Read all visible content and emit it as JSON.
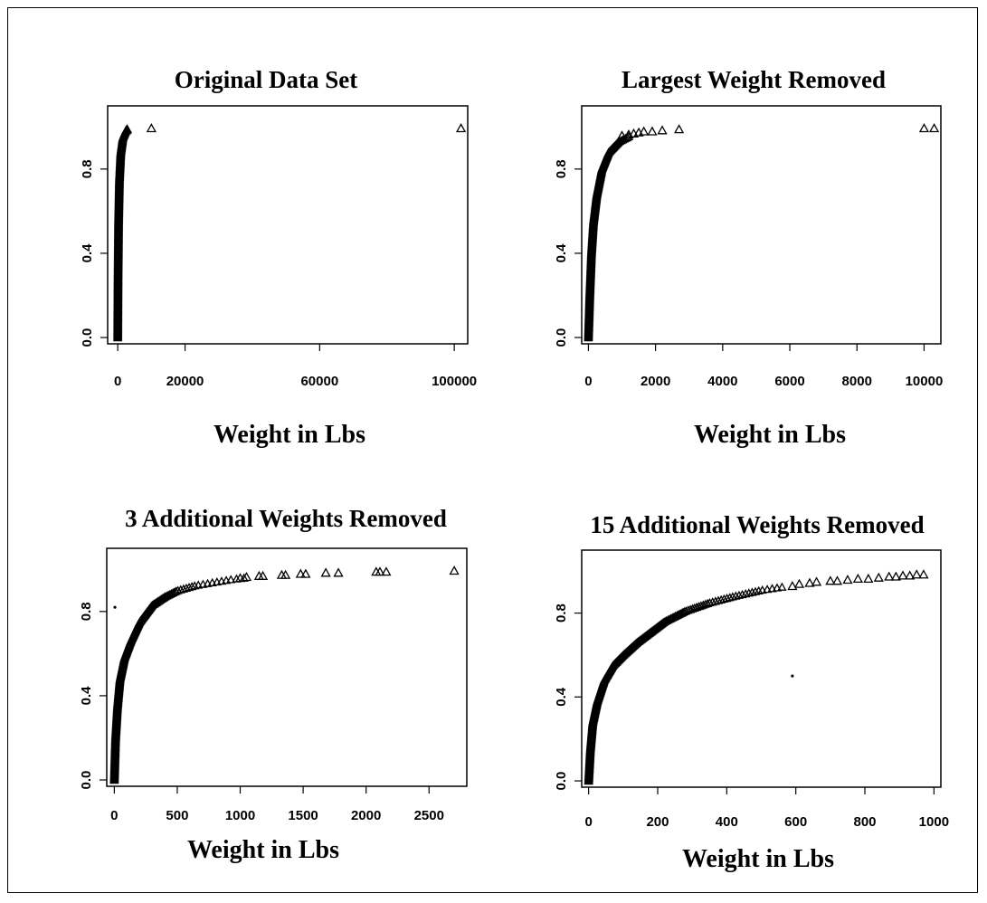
{
  "chart_data": [
    {
      "type": "scatter",
      "title": "Original Data Set",
      "xlabel": "Weight in Lbs",
      "ylabel": "",
      "xlim": [
        -3000,
        104000
      ],
      "ylim": [
        -0.03,
        1.1
      ],
      "xticks": [
        0,
        20000,
        60000,
        100000
      ],
      "xtick_labels": [
        "0",
        "20000",
        "60000",
        "100000"
      ],
      "yticks": [
        0.0,
        0.4,
        0.8
      ],
      "ytick_labels": [
        "0.0",
        "0.4",
        "0.8"
      ],
      "curve": [
        [
          0,
          0.0
        ],
        [
          100,
          0.3
        ],
        [
          250,
          0.55
        ],
        [
          500,
          0.75
        ],
        [
          900,
          0.88
        ],
        [
          1500,
          0.95
        ],
        [
          2300,
          0.98
        ],
        [
          2800,
          0.99
        ]
      ],
      "points": [
        [
          2500,
          0.985
        ],
        [
          2800,
          0.99
        ],
        [
          10000,
          0.995
        ],
        [
          102000,
          0.995
        ]
      ],
      "stray_points": []
    },
    {
      "type": "scatter",
      "title": "Largest Weight Removed",
      "xlabel": "Weight in Lbs",
      "ylabel": "",
      "xlim": [
        -200,
        10500
      ],
      "ylim": [
        -0.03,
        1.1
      ],
      "xticks": [
        0,
        2000,
        4000,
        6000,
        8000,
        10000
      ],
      "xtick_labels": [
        "0",
        "2000",
        "4000",
        "6000",
        "8000",
        "10000"
      ],
      "yticks": [
        0.0,
        0.4,
        0.8
      ],
      "ytick_labels": [
        "0.0",
        "0.4",
        "0.8"
      ],
      "curve": [
        [
          0,
          0.0
        ],
        [
          40,
          0.2
        ],
        [
          90,
          0.4
        ],
        [
          150,
          0.55
        ],
        [
          250,
          0.68
        ],
        [
          400,
          0.8
        ],
        [
          600,
          0.88
        ],
        [
          900,
          0.93
        ],
        [
          1200,
          0.955
        ]
      ],
      "points": [
        [
          1000,
          0.96
        ],
        [
          1200,
          0.965
        ],
        [
          1350,
          0.97
        ],
        [
          1500,
          0.975
        ],
        [
          1650,
          0.98
        ],
        [
          1900,
          0.98
        ],
        [
          2200,
          0.985
        ],
        [
          2700,
          0.99
        ],
        [
          10000,
          0.995
        ],
        [
          10300,
          0.995
        ]
      ],
      "stray_points": []
    },
    {
      "type": "scatter",
      "title": "3 Additional Weights Removed",
      "xlabel": "Weight in Lbs",
      "ylabel": "",
      "xlim": [
        -60,
        2800
      ],
      "ylim": [
        -0.03,
        1.1
      ],
      "xticks": [
        0,
        500,
        1000,
        1500,
        2000,
        2500
      ],
      "xtick_labels": [
        "0",
        "500",
        "1000",
        "1500",
        "2000",
        "2500"
      ],
      "yticks": [
        0.0,
        0.4,
        0.8
      ],
      "ytick_labels": [
        "0.0",
        "0.4",
        "0.8"
      ],
      "curve": [
        [
          0,
          0.0
        ],
        [
          10,
          0.2
        ],
        [
          25,
          0.35
        ],
        [
          45,
          0.48
        ],
        [
          80,
          0.58
        ],
        [
          130,
          0.66
        ],
        [
          200,
          0.75
        ],
        [
          300,
          0.83
        ],
        [
          400,
          0.87
        ],
        [
          500,
          0.9
        ],
        [
          650,
          0.925
        ],
        [
          800,
          0.94
        ],
        [
          950,
          0.955
        ],
        [
          1030,
          0.96
        ]
      ],
      "points": [
        [
          1000,
          0.96
        ],
        [
          1050,
          0.965
        ],
        [
          1150,
          0.97
        ],
        [
          1180,
          0.97
        ],
        [
          1330,
          0.975
        ],
        [
          1360,
          0.975
        ],
        [
          1480,
          0.98
        ],
        [
          1520,
          0.98
        ],
        [
          1680,
          0.985
        ],
        [
          1780,
          0.985
        ],
        [
          2080,
          0.99
        ],
        [
          2110,
          0.99
        ],
        [
          2160,
          0.99
        ],
        [
          2700,
          0.995
        ]
      ],
      "stray_points": [
        [
          5,
          0.82
        ]
      ]
    },
    {
      "type": "scatter",
      "title": "15 Additional Weights Removed",
      "xlabel": "Weight in Lbs",
      "ylabel": "",
      "xlim": [
        -20,
        1020
      ],
      "ylim": [
        -0.03,
        1.1
      ],
      "xticks": [
        0,
        200,
        400,
        600,
        800,
        1000
      ],
      "xtick_labels": [
        "0",
        "200",
        "400",
        "600",
        "800",
        "1000"
      ],
      "yticks": [
        0.0,
        0.4,
        0.8
      ],
      "ytick_labels": [
        "0.0",
        "0.4",
        "0.8"
      ],
      "curve": [
        [
          0,
          0.0
        ],
        [
          5,
          0.15
        ],
        [
          12,
          0.28
        ],
        [
          25,
          0.38
        ],
        [
          45,
          0.48
        ],
        [
          70,
          0.55
        ],
        [
          100,
          0.6
        ],
        [
          140,
          0.66
        ],
        [
          180,
          0.71
        ],
        [
          220,
          0.76
        ],
        [
          280,
          0.81
        ],
        [
          350,
          0.85
        ],
        [
          420,
          0.88
        ],
        [
          500,
          0.91
        ],
        [
          560,
          0.925
        ]
      ],
      "points": [
        [
          590,
          0.93
        ],
        [
          610,
          0.94
        ],
        [
          640,
          0.945
        ],
        [
          660,
          0.95
        ],
        [
          700,
          0.955
        ],
        [
          720,
          0.955
        ],
        [
          750,
          0.96
        ],
        [
          780,
          0.965
        ],
        [
          810,
          0.965
        ],
        [
          840,
          0.97
        ],
        [
          870,
          0.975
        ],
        [
          890,
          0.975
        ],
        [
          910,
          0.98
        ],
        [
          930,
          0.98
        ],
        [
          950,
          0.985
        ],
        [
          970,
          0.985
        ]
      ],
      "stray_points": [
        [
          590,
          0.5
        ]
      ]
    }
  ]
}
